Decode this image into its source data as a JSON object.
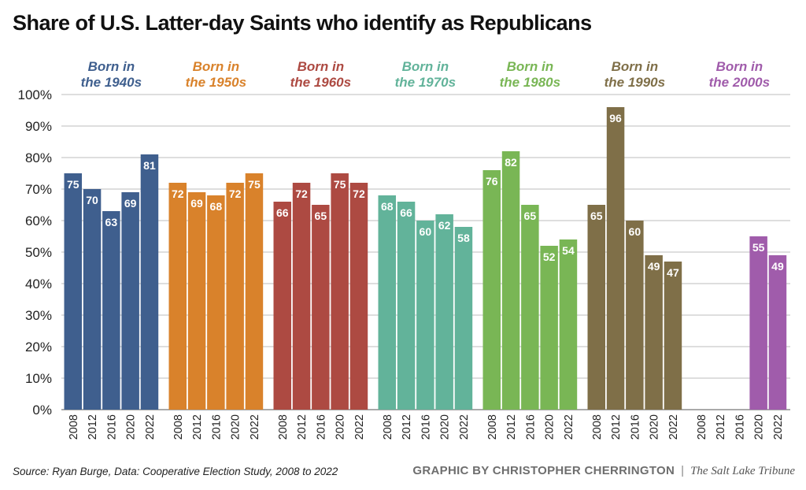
{
  "title": "Share of U.S. Latter-day Saints who identify as Republicans",
  "source": "Source: Ryan Burge, Data: Cooperative Election Study, 2008 to 2022",
  "credit": {
    "main": "GRAPHIC BY CHRISTOPHER CHERRINGTON",
    "separator": "|",
    "publication": "The Salt Lake Tribune"
  },
  "chart_data": {
    "type": "bar",
    "x": [
      "2008",
      "2012",
      "2016",
      "2020",
      "2022"
    ],
    "ylim": [
      0,
      100
    ],
    "yticks": [
      0,
      10,
      20,
      30,
      40,
      50,
      60,
      70,
      80,
      90,
      100
    ],
    "ytick_suffix": "%",
    "grid": true,
    "groups": [
      {
        "label_line1": "Born in",
        "label_line2": "the 1940s",
        "color": "#3f5f8e",
        "values": [
          75,
          70,
          63,
          69,
          81
        ]
      },
      {
        "label_line1": "Born in",
        "label_line2": "the 1950s",
        "color": "#d9822b",
        "values": [
          72,
          69,
          68,
          72,
          75
        ]
      },
      {
        "label_line1": "Born in",
        "label_line2": "the 1960s",
        "color": "#ad4a42",
        "values": [
          66,
          72,
          65,
          75,
          72
        ]
      },
      {
        "label_line1": "Born in",
        "label_line2": "the 1970s",
        "color": "#62b39a",
        "values": [
          68,
          66,
          60,
          62,
          58
        ]
      },
      {
        "label_line1": "Born in",
        "label_line2": "the 1980s",
        "color": "#79b655",
        "values": [
          76,
          82,
          65,
          52,
          54
        ]
      },
      {
        "label_line1": "Born in",
        "label_line2": "the 1990s",
        "color": "#7f6f48",
        "values": [
          65,
          96,
          60,
          49,
          47
        ]
      },
      {
        "label_line1": "Born in",
        "label_line2": "the 2000s",
        "color": "#a05cab",
        "values": [
          null,
          null,
          null,
          55,
          49
        ]
      }
    ]
  }
}
